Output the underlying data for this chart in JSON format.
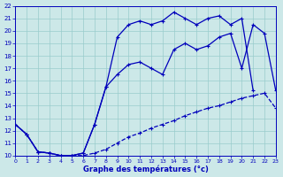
{
  "title": "Graphe des températures (°c)",
  "bg_color": "#cce8e8",
  "grid_color": "#99cccc",
  "line_color": "#0000bb",
  "xlim": [
    0,
    23
  ],
  "ylim": [
    10,
    22
  ],
  "xticks": [
    0,
    1,
    2,
    3,
    4,
    5,
    6,
    7,
    8,
    9,
    10,
    11,
    12,
    13,
    14,
    15,
    16,
    17,
    18,
    19,
    20,
    21,
    22,
    23
  ],
  "yticks": [
    10,
    11,
    12,
    13,
    14,
    15,
    16,
    17,
    18,
    19,
    20,
    21,
    22
  ],
  "line_dashed": {
    "x": [
      0,
      1,
      2,
      3,
      4,
      5,
      6,
      7,
      8,
      9,
      10,
      11,
      12,
      13,
      14,
      15,
      16,
      17,
      18,
      19,
      20,
      21,
      22,
      23
    ],
    "y": [
      12.5,
      11.7,
      10.3,
      10.2,
      10.0,
      10.0,
      10.0,
      10.2,
      10.5,
      11.0,
      11.5,
      11.8,
      12.2,
      12.5,
      12.8,
      13.2,
      13.5,
      13.8,
      14.0,
      14.3,
      14.6,
      14.8,
      15.0,
      13.8
    ]
  },
  "line_mid": {
    "x": [
      0,
      1,
      2,
      3,
      4,
      5,
      6,
      7,
      8,
      9,
      10,
      11,
      12,
      13,
      14,
      15,
      16,
      17,
      18,
      19,
      20,
      21,
      22,
      23
    ],
    "y": [
      12.5,
      11.7,
      10.3,
      10.2,
      10.0,
      10.0,
      10.2,
      12.5,
      15.5,
      16.5,
      17.3,
      17.5,
      17.0,
      16.5,
      18.5,
      19.0,
      18.5,
      18.8,
      19.5,
      19.8,
      17.0,
      20.5,
      19.8,
      15.2
    ]
  },
  "line_top": {
    "x": [
      0,
      1,
      2,
      3,
      4,
      5,
      6,
      7,
      8,
      9,
      10,
      11,
      12,
      13,
      14,
      15,
      16,
      17,
      18,
      19,
      20,
      21
    ],
    "y": [
      12.5,
      11.7,
      10.3,
      10.2,
      10.0,
      10.0,
      10.2,
      12.5,
      15.5,
      19.5,
      20.5,
      20.8,
      20.5,
      20.8,
      21.5,
      21.0,
      20.5,
      21.0,
      21.2,
      20.5,
      21.0,
      15.2
    ]
  }
}
